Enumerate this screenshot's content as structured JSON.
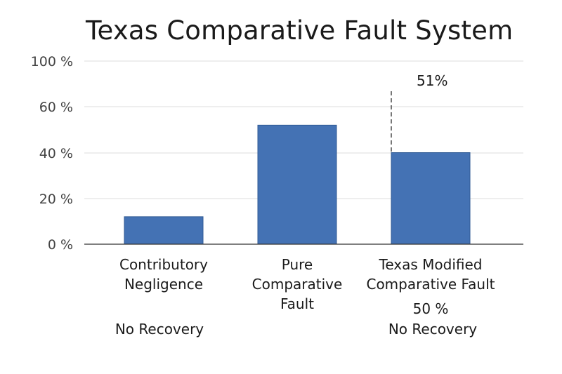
{
  "chart_data": {
    "type": "bar",
    "title": "Texas Comparative Fault System",
    "xlabel": "",
    "ylabel": "",
    "yticks": [
      "0 %",
      "20 %",
      "40 %",
      "60 %",
      "100 %"
    ],
    "categories": [
      [
        "Contributory",
        "Negligence"
      ],
      [
        "Pure",
        "Comparative",
        "Fault"
      ],
      [
        "Texas Modified",
        "Comparative Fault"
      ]
    ],
    "values": [
      12,
      52,
      40
    ],
    "bar_color": "#4472b4",
    "grid": true,
    "annotations": {
      "threshold_label": "51%",
      "bar3_note": "50 %",
      "bar1_recovery": "No Recovery",
      "bar3_recovery": "No Recovery"
    }
  }
}
